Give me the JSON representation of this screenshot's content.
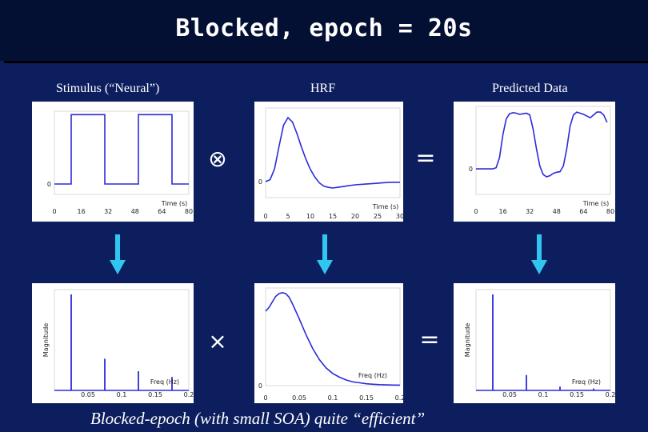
{
  "slide": {
    "title": "Blocked, epoch = 20s",
    "footer": "Blocked-epoch (with small SOA) quite “efficient”"
  },
  "columns": {
    "stimulus": "Stimulus (“Neural”)",
    "hrf": "HRF",
    "predicted": "Predicted Data"
  },
  "operators": {
    "convolve_symbol": "⊗",
    "equals_top": "=",
    "multiply_symbol": "×",
    "equals_bottom": "="
  },
  "chart_data": [
    {
      "id": "stimulus-time",
      "type": "line",
      "xlabel": "Time (s)",
      "ylabel": "",
      "xlim": [
        0,
        80
      ],
      "xticks": [
        0,
        16,
        32,
        48,
        64,
        80
      ],
      "yticks": [
        0
      ],
      "series": [
        {
          "x": [
            0,
            10,
            10,
            30,
            30,
            50,
            50,
            70,
            70,
            80
          ],
          "y": [
            0,
            0,
            1,
            1,
            0,
            0,
            1,
            1,
            0,
            0
          ]
        }
      ],
      "color": "#2b2bd9"
    },
    {
      "id": "hrf-time",
      "type": "line",
      "xlabel": "Time (s)",
      "ylabel": "",
      "xlim": [
        0,
        30
      ],
      "xticks": [
        0,
        5,
        10,
        15,
        20,
        25,
        30
      ],
      "yticks": [
        0
      ],
      "series": [
        {
          "x": [
            0,
            1,
            2,
            3,
            4,
            5,
            6,
            7,
            8,
            9,
            10,
            11,
            12,
            13,
            14,
            15,
            16,
            17,
            18,
            20,
            22,
            24,
            26,
            28,
            30
          ],
          "y": [
            0,
            0.03,
            0.2,
            0.55,
            0.88,
            1.0,
            0.93,
            0.75,
            0.54,
            0.35,
            0.19,
            0.07,
            -0.02,
            -0.07,
            -0.09,
            -0.1,
            -0.09,
            -0.08,
            -0.07,
            -0.05,
            -0.04,
            -0.03,
            -0.02,
            -0.01,
            -0.01
          ]
        }
      ],
      "color": "#2b2bd9"
    },
    {
      "id": "predicted-time",
      "type": "line",
      "xlabel": "Time (s)",
      "ylabel": "",
      "xlim": [
        0,
        80
      ],
      "xticks": [
        0,
        16,
        32,
        48,
        64,
        80
      ],
      "yticks": [
        0
      ],
      "series": [
        {
          "x": [
            0,
            10,
            12,
            14,
            16,
            18,
            20,
            22,
            24,
            26,
            28,
            30,
            32,
            34,
            36,
            38,
            40,
            42,
            44,
            46,
            48,
            50,
            52,
            54,
            56,
            58,
            60,
            62,
            64,
            66,
            68,
            70,
            72,
            74,
            76,
            78
          ],
          "y": [
            0,
            0,
            0.02,
            0.2,
            0.6,
            0.88,
            0.97,
            0.99,
            0.98,
            0.96,
            0.97,
            0.98,
            0.95,
            0.7,
            0.35,
            0.05,
            -0.1,
            -0.14,
            -0.12,
            -0.08,
            -0.06,
            -0.05,
            0.05,
            0.35,
            0.75,
            0.95,
            1.0,
            0.98,
            0.96,
            0.93,
            0.9,
            0.95,
            1.0,
            1.0,
            0.95,
            0.82
          ]
        }
      ],
      "color": "#2b2bd9"
    },
    {
      "id": "stimulus-freq",
      "type": "line",
      "xlabel": "Freq (Hz)",
      "ylabel": "Magnitude",
      "xlim": [
        0,
        0.2
      ],
      "xticks": [
        0.05,
        0.1,
        0.15,
        0.2
      ],
      "spikes": [
        {
          "freq": 0.025,
          "magnitude": 1.0
        },
        {
          "freq": 0.075,
          "magnitude": 0.33
        },
        {
          "freq": 0.125,
          "magnitude": 0.2
        },
        {
          "freq": 0.175,
          "magnitude": 0.14
        }
      ],
      "color": "#2b2bd9"
    },
    {
      "id": "hrf-freq",
      "type": "line",
      "xlabel": "Freq (Hz)",
      "ylabel": "",
      "xlim": [
        0,
        0.2
      ],
      "xticks": [
        0,
        0.05,
        0.1,
        0.15,
        0.2
      ],
      "yticks": [
        0
      ],
      "series": [
        {
          "x": [
            0,
            0.005,
            0.01,
            0.015,
            0.02,
            0.025,
            0.03,
            0.035,
            0.04,
            0.05,
            0.06,
            0.07,
            0.08,
            0.09,
            0.1,
            0.11,
            0.12,
            0.13,
            0.14,
            0.15,
            0.16,
            0.17,
            0.18,
            0.19,
            0.2
          ],
          "y": [
            0.8,
            0.84,
            0.9,
            0.96,
            0.99,
            1.0,
            0.99,
            0.95,
            0.88,
            0.72,
            0.55,
            0.4,
            0.28,
            0.19,
            0.13,
            0.09,
            0.06,
            0.04,
            0.03,
            0.02,
            0.015,
            0.01,
            0.008,
            0.006,
            0.005
          ]
        }
      ],
      "color": "#2b2bd9"
    },
    {
      "id": "predicted-freq",
      "type": "line",
      "xlabel": "Freq (Hz)",
      "ylabel": "Magnitude",
      "xlim": [
        0,
        0.2
      ],
      "xticks": [
        0.05,
        0.1,
        0.15,
        0.2
      ],
      "spikes": [
        {
          "freq": 0.025,
          "magnitude": 1.0
        },
        {
          "freq": 0.075,
          "magnitude": 0.16
        },
        {
          "freq": 0.125,
          "magnitude": 0.04
        },
        {
          "freq": 0.175,
          "magnitude": 0.02
        }
      ],
      "color": "#2b2bd9"
    }
  ]
}
